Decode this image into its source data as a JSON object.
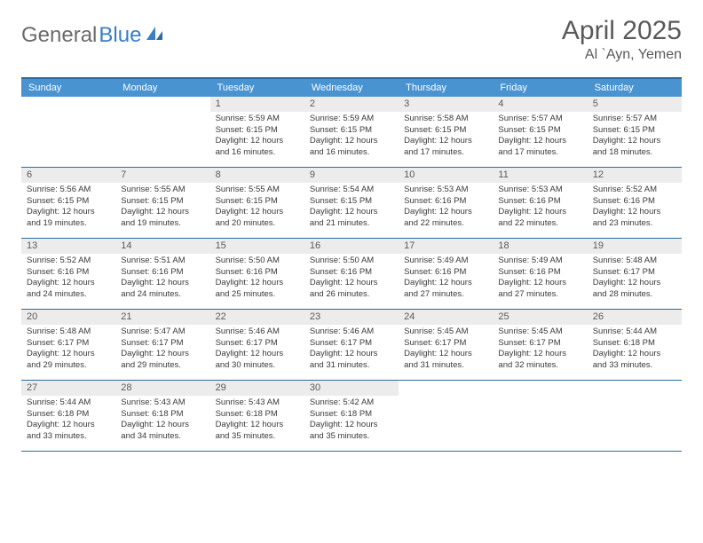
{
  "brand": {
    "name_part1": "General",
    "name_part2": "Blue",
    "text_color": "#6b6b6b",
    "accent_color": "#3a7fc3"
  },
  "header": {
    "month_title": "April 2025",
    "location": "Al `Ayn, Yemen",
    "title_fontsize": 30,
    "location_fontsize": 16,
    "title_color": "#5a5a5a"
  },
  "calendar": {
    "border_color": "#2b6ca3",
    "header_bg": "#4a93d1",
    "header_text_color": "#ffffff",
    "daynum_bg": "#ececec",
    "body_text_color": "#3a3a3a",
    "weekday_fontsize": 11,
    "daynum_fontsize": 11,
    "body_fontsize": 9.5,
    "weekdays": [
      "Sunday",
      "Monday",
      "Tuesday",
      "Wednesday",
      "Thursday",
      "Friday",
      "Saturday"
    ],
    "leading_blanks": 2,
    "days": [
      {
        "n": "1",
        "sunrise": "5:59 AM",
        "sunset": "6:15 PM",
        "daylight": "12 hours and 16 minutes."
      },
      {
        "n": "2",
        "sunrise": "5:59 AM",
        "sunset": "6:15 PM",
        "daylight": "12 hours and 16 minutes."
      },
      {
        "n": "3",
        "sunrise": "5:58 AM",
        "sunset": "6:15 PM",
        "daylight": "12 hours and 17 minutes."
      },
      {
        "n": "4",
        "sunrise": "5:57 AM",
        "sunset": "6:15 PM",
        "daylight": "12 hours and 17 minutes."
      },
      {
        "n": "5",
        "sunrise": "5:57 AM",
        "sunset": "6:15 PM",
        "daylight": "12 hours and 18 minutes."
      },
      {
        "n": "6",
        "sunrise": "5:56 AM",
        "sunset": "6:15 PM",
        "daylight": "12 hours and 19 minutes."
      },
      {
        "n": "7",
        "sunrise": "5:55 AM",
        "sunset": "6:15 PM",
        "daylight": "12 hours and 19 minutes."
      },
      {
        "n": "8",
        "sunrise": "5:55 AM",
        "sunset": "6:15 PM",
        "daylight": "12 hours and 20 minutes."
      },
      {
        "n": "9",
        "sunrise": "5:54 AM",
        "sunset": "6:15 PM",
        "daylight": "12 hours and 21 minutes."
      },
      {
        "n": "10",
        "sunrise": "5:53 AM",
        "sunset": "6:16 PM",
        "daylight": "12 hours and 22 minutes."
      },
      {
        "n": "11",
        "sunrise": "5:53 AM",
        "sunset": "6:16 PM",
        "daylight": "12 hours and 22 minutes."
      },
      {
        "n": "12",
        "sunrise": "5:52 AM",
        "sunset": "6:16 PM",
        "daylight": "12 hours and 23 minutes."
      },
      {
        "n": "13",
        "sunrise": "5:52 AM",
        "sunset": "6:16 PM",
        "daylight": "12 hours and 24 minutes."
      },
      {
        "n": "14",
        "sunrise": "5:51 AM",
        "sunset": "6:16 PM",
        "daylight": "12 hours and 24 minutes."
      },
      {
        "n": "15",
        "sunrise": "5:50 AM",
        "sunset": "6:16 PM",
        "daylight": "12 hours and 25 minutes."
      },
      {
        "n": "16",
        "sunrise": "5:50 AM",
        "sunset": "6:16 PM",
        "daylight": "12 hours and 26 minutes."
      },
      {
        "n": "17",
        "sunrise": "5:49 AM",
        "sunset": "6:16 PM",
        "daylight": "12 hours and 27 minutes."
      },
      {
        "n": "18",
        "sunrise": "5:49 AM",
        "sunset": "6:16 PM",
        "daylight": "12 hours and 27 minutes."
      },
      {
        "n": "19",
        "sunrise": "5:48 AM",
        "sunset": "6:17 PM",
        "daylight": "12 hours and 28 minutes."
      },
      {
        "n": "20",
        "sunrise": "5:48 AM",
        "sunset": "6:17 PM",
        "daylight": "12 hours and 29 minutes."
      },
      {
        "n": "21",
        "sunrise": "5:47 AM",
        "sunset": "6:17 PM",
        "daylight": "12 hours and 29 minutes."
      },
      {
        "n": "22",
        "sunrise": "5:46 AM",
        "sunset": "6:17 PM",
        "daylight": "12 hours and 30 minutes."
      },
      {
        "n": "23",
        "sunrise": "5:46 AM",
        "sunset": "6:17 PM",
        "daylight": "12 hours and 31 minutes."
      },
      {
        "n": "24",
        "sunrise": "5:45 AM",
        "sunset": "6:17 PM",
        "daylight": "12 hours and 31 minutes."
      },
      {
        "n": "25",
        "sunrise": "5:45 AM",
        "sunset": "6:17 PM",
        "daylight": "12 hours and 32 minutes."
      },
      {
        "n": "26",
        "sunrise": "5:44 AM",
        "sunset": "6:18 PM",
        "daylight": "12 hours and 33 minutes."
      },
      {
        "n": "27",
        "sunrise": "5:44 AM",
        "sunset": "6:18 PM",
        "daylight": "12 hours and 33 minutes."
      },
      {
        "n": "28",
        "sunrise": "5:43 AM",
        "sunset": "6:18 PM",
        "daylight": "12 hours and 34 minutes."
      },
      {
        "n": "29",
        "sunrise": "5:43 AM",
        "sunset": "6:18 PM",
        "daylight": "12 hours and 35 minutes."
      },
      {
        "n": "30",
        "sunrise": "5:42 AM",
        "sunset": "6:18 PM",
        "daylight": "12 hours and 35 minutes."
      }
    ],
    "labels": {
      "sunrise_prefix": "Sunrise: ",
      "sunset_prefix": "Sunset: ",
      "daylight_prefix": "Daylight: "
    }
  }
}
